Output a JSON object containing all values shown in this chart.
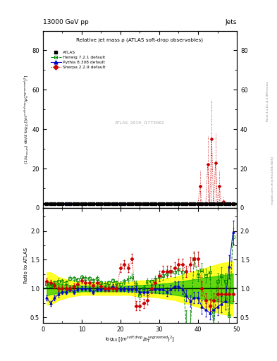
{
  "title_top": "13000 GeV pp",
  "title_right": "Jets",
  "plot_title": "Relative jet mass ρ (ATLAS soft-drop observables)",
  "watermark": "ATLAS_2019_I1772062",
  "ylabel_main": "$(1/\\sigma_{resum})$ d$\\sigma$/d $\\log_{10}[(m^{soft drop}/p_T^{ungroomed})^2]$",
  "ylabel_ratio": "Ratio to ATLAS",
  "xlabel": "$\\log_{10}[(m^{soft\\ drop}/p_T^{ungroomed})^2]$",
  "xlim": [
    0,
    50
  ],
  "ylim_main": [
    0,
    90
  ],
  "ylim_ratio": [
    0.4,
    2.4
  ],
  "yticks_main": [
    0,
    20,
    40,
    60,
    80
  ],
  "yticks_ratio": [
    0.5,
    1.0,
    1.5,
    2.0
  ],
  "xticks": [
    0,
    10,
    20,
    30,
    40,
    50
  ],
  "legend_entries": [
    "ATLAS",
    "Herwig 7.2.1 default",
    "Pythia 8.308 default",
    "Sherpa 2.2.9 default"
  ],
  "atlas_color": "#000000",
  "herwig_color": "#008800",
  "pythia_color": "#0000cc",
  "sherpa_color": "#cc0000",
  "band_yellow": "#ffff00",
  "band_green": "#00bb00",
  "right_label1": "Rivet 3.1.10, ≥ 2.9M events",
  "right_label2": "mcplots.cern.ch [arXiv:1306.3436]",
  "x_data": [
    1,
    2,
    3,
    4,
    5,
    6,
    7,
    8,
    9,
    10,
    11,
    12,
    13,
    14,
    15,
    16,
    17,
    18,
    19,
    20,
    21,
    22,
    23,
    24,
    25,
    26,
    27,
    28,
    29,
    30,
    31,
    32,
    33,
    34,
    35,
    36,
    37,
    38,
    39,
    40,
    41,
    42,
    43,
    44,
    45,
    46,
    47,
    48,
    49
  ],
  "sherpa_main_spikes": {
    "x": [
      40.5,
      42.5,
      43.5,
      44.5,
      45.5,
      46.5
    ],
    "y": [
      11.0,
      22.0,
      35.0,
      23.0,
      11.0,
      3.0
    ],
    "yerr_up": [
      8.0,
      15.0,
      20.0,
      15.0,
      8.0,
      3.0
    ]
  },
  "herwig_ratio": [
    1.08,
    1.05,
    1.1,
    1.13,
    1.12,
    1.1,
    1.18,
    1.17,
    1.15,
    1.2,
    1.18,
    1.17,
    1.14,
    1.18,
    1.1,
    1.08,
    1.1,
    1.14,
    1.1,
    1.08,
    1.12,
    1.16,
    1.2,
    1.08,
    0.88,
    1.0,
    1.12,
    1.12,
    1.16,
    1.2,
    1.22,
    1.26,
    1.3,
    1.28,
    1.33,
    1.28,
    0.32,
    0.32,
    1.52,
    1.22,
    1.32,
    1.22,
    1.28,
    0.33,
    1.12,
    1.22,
    1.12,
    0.52,
    1.9
  ],
  "pythia_ratio": [
    0.84,
    0.74,
    0.84,
    0.9,
    0.94,
    0.94,
    0.99,
    0.94,
    0.99,
    1.0,
    1.0,
    0.99,
    0.94,
    0.99,
    0.99,
    0.99,
    0.99,
    1.04,
    0.99,
    0.99,
    0.99,
    0.99,
    0.99,
    0.99,
    0.94,
    0.94,
    0.94,
    0.99,
    0.99,
    0.99,
    0.99,
    0.94,
    0.99,
    1.04,
    1.04,
    0.99,
    0.88,
    0.78,
    0.84,
    0.84,
    0.68,
    0.63,
    0.58,
    0.63,
    0.68,
    0.73,
    0.78,
    1.38,
    1.98
  ],
  "sherpa_ratio": [
    1.12,
    1.1,
    1.05,
    1.0,
    1.0,
    1.0,
    1.0,
    1.04,
    1.08,
    1.14,
    1.1,
    1.1,
    1.05,
    1.1,
    1.04,
    1.0,
    1.0,
    1.0,
    1.0,
    1.36,
    1.42,
    1.36,
    1.52,
    0.7,
    0.7,
    0.74,
    0.8,
    1.0,
    1.1,
    1.22,
    1.3,
    1.3,
    1.3,
    1.36,
    1.42,
    1.42,
    1.3,
    1.42,
    1.52,
    1.52,
    1.0,
    0.8,
    0.7,
    0.8,
    0.9,
    0.9,
    0.9,
    0.9,
    0.9
  ],
  "herwig_ratio_err": [
    0.05,
    0.04,
    0.04,
    0.04,
    0.04,
    0.04,
    0.04,
    0.04,
    0.04,
    0.04,
    0.04,
    0.04,
    0.04,
    0.04,
    0.04,
    0.04,
    0.04,
    0.04,
    0.04,
    0.04,
    0.04,
    0.06,
    0.06,
    0.06,
    0.06,
    0.06,
    0.06,
    0.06,
    0.06,
    0.07,
    0.07,
    0.07,
    0.08,
    0.08,
    0.08,
    0.08,
    0.3,
    0.3,
    0.1,
    0.1,
    0.12,
    0.12,
    0.12,
    0.3,
    0.15,
    0.15,
    0.15,
    0.3,
    0.15
  ],
  "pythia_ratio_err": [
    0.04,
    0.04,
    0.04,
    0.04,
    0.04,
    0.04,
    0.04,
    0.04,
    0.04,
    0.04,
    0.04,
    0.04,
    0.04,
    0.04,
    0.04,
    0.04,
    0.04,
    0.04,
    0.04,
    0.04,
    0.04,
    0.05,
    0.05,
    0.05,
    0.05,
    0.05,
    0.06,
    0.06,
    0.06,
    0.07,
    0.07,
    0.07,
    0.08,
    0.08,
    0.08,
    0.08,
    0.1,
    0.1,
    0.1,
    0.1,
    0.12,
    0.12,
    0.12,
    0.14,
    0.14,
    0.14,
    0.14,
    0.2,
    0.2
  ],
  "sherpa_ratio_err": [
    0.05,
    0.05,
    0.05,
    0.05,
    0.05,
    0.05,
    0.05,
    0.05,
    0.05,
    0.05,
    0.05,
    0.05,
    0.05,
    0.05,
    0.05,
    0.05,
    0.05,
    0.05,
    0.05,
    0.07,
    0.07,
    0.07,
    0.08,
    0.08,
    0.08,
    0.08,
    0.08,
    0.08,
    0.08,
    0.09,
    0.09,
    0.09,
    0.09,
    0.1,
    0.1,
    0.1,
    0.1,
    0.12,
    0.12,
    0.12,
    0.12,
    0.12,
    0.12,
    0.12,
    0.12,
    0.12,
    0.12,
    0.12,
    0.12
  ],
  "atlas_ratio_band_yellow_lo": [
    0.72,
    0.72,
    0.76,
    0.8,
    0.82,
    0.84,
    0.86,
    0.87,
    0.88,
    0.89,
    0.89,
    0.89,
    0.89,
    0.89,
    0.89,
    0.89,
    0.89,
    0.89,
    0.89,
    0.89,
    0.89,
    0.89,
    0.88,
    0.87,
    0.86,
    0.86,
    0.86,
    0.86,
    0.85,
    0.84,
    0.83,
    0.82,
    0.81,
    0.8,
    0.78,
    0.76,
    0.74,
    0.72,
    0.7,
    0.68,
    0.66,
    0.64,
    0.62,
    0.6,
    0.58,
    0.56,
    0.55,
    0.54,
    0.53
  ],
  "atlas_ratio_band_yellow_hi": [
    1.28,
    1.28,
    1.24,
    1.2,
    1.18,
    1.16,
    1.14,
    1.13,
    1.12,
    1.11,
    1.11,
    1.11,
    1.11,
    1.11,
    1.11,
    1.11,
    1.11,
    1.11,
    1.11,
    1.11,
    1.11,
    1.11,
    1.12,
    1.13,
    1.14,
    1.14,
    1.14,
    1.14,
    1.15,
    1.16,
    1.17,
    1.18,
    1.19,
    1.2,
    1.22,
    1.24,
    1.26,
    1.28,
    1.3,
    1.32,
    1.34,
    1.36,
    1.38,
    1.4,
    1.42,
    1.44,
    1.45,
    1.46,
    1.47
  ],
  "atlas_ratio_band_green_lo": [
    0.88,
    0.9,
    0.91,
    0.92,
    0.93,
    0.93,
    0.94,
    0.94,
    0.94,
    0.95,
    0.95,
    0.95,
    0.95,
    0.95,
    0.95,
    0.95,
    0.95,
    0.95,
    0.95,
    0.95,
    0.95,
    0.95,
    0.95,
    0.94,
    0.94,
    0.94,
    0.93,
    0.93,
    0.92,
    0.92,
    0.91,
    0.91,
    0.9,
    0.89,
    0.88,
    0.87,
    0.86,
    0.85,
    0.84,
    0.83,
    0.82,
    0.81,
    0.8,
    0.79,
    0.78,
    0.77,
    0.76,
    0.75,
    0.74
  ],
  "atlas_ratio_band_green_hi": [
    1.12,
    1.1,
    1.09,
    1.08,
    1.07,
    1.07,
    1.06,
    1.06,
    1.06,
    1.05,
    1.05,
    1.05,
    1.05,
    1.05,
    1.05,
    1.05,
    1.05,
    1.05,
    1.05,
    1.05,
    1.05,
    1.05,
    1.05,
    1.06,
    1.06,
    1.06,
    1.07,
    1.07,
    1.08,
    1.08,
    1.09,
    1.09,
    1.1,
    1.11,
    1.12,
    1.13,
    1.14,
    1.15,
    1.16,
    1.17,
    1.18,
    1.19,
    1.2,
    1.21,
    1.22,
    1.23,
    1.24,
    1.25,
    1.26
  ]
}
